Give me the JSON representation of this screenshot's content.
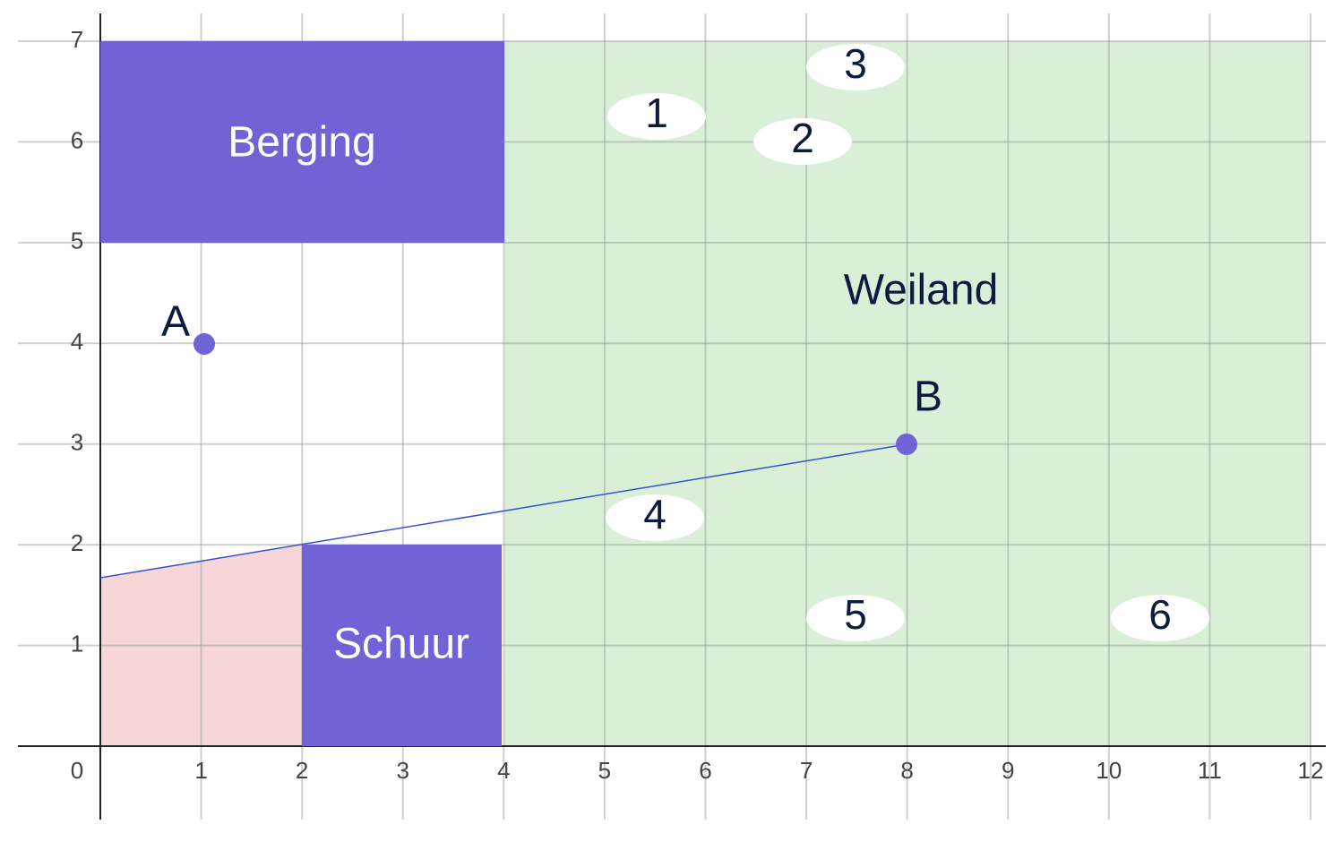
{
  "x_axis": {
    "ticks": [
      0,
      1,
      2,
      3,
      4,
      5,
      6,
      7,
      8,
      9,
      10,
      11,
      12
    ]
  },
  "y_axis": {
    "ticks": [
      1,
      2,
      3,
      4,
      5,
      6,
      7
    ]
  },
  "regions": {
    "berging": "Berging",
    "schuur": "Schuur",
    "weiland": "Weiland"
  },
  "points": [
    "A",
    "B"
  ],
  "markers": [
    "1",
    "2",
    "3",
    "4",
    "5",
    "6"
  ]
}
